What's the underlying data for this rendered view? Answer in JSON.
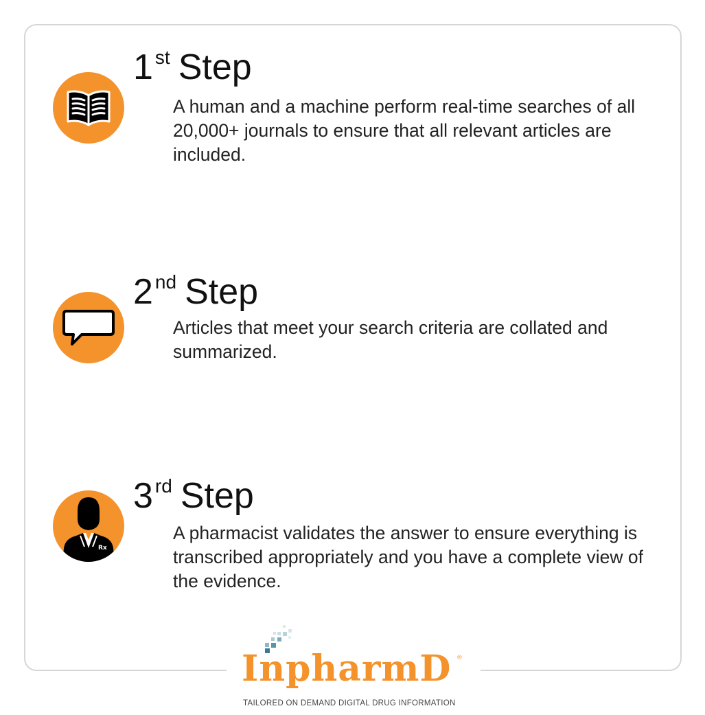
{
  "steps": [
    {
      "number": "1",
      "suffix": "st",
      "word": "Step",
      "description": "A human and a machine perform real-time searches of all 20,000+ journals to ensure that all relevant articles are included.",
      "icon": "open-book-icon"
    },
    {
      "number": "2",
      "suffix": "nd",
      "word": "Step",
      "description": "Articles that meet your search criteria are collated and summarized.",
      "icon": "speech-bubble-icon"
    },
    {
      "number": "3",
      "suffix": "rd",
      "word": "Step",
      "description": "A pharmacist validates the answer to ensure everything is transcribed appropriately and you have a complete view of the evidence.",
      "icon": "pharmacist-icon",
      "icon_badge": "Rx"
    }
  ],
  "logo": {
    "wordmark": "InpharmD",
    "registered": "®",
    "tagline": "TAILORED ON DEMAND DIGITAL DRUG INFORMATION"
  },
  "colors": {
    "accent": "#f4922c",
    "border": "#d6d6d6",
    "text": "#1a1a1a",
    "pixel_blue": "#4f8fa8"
  }
}
